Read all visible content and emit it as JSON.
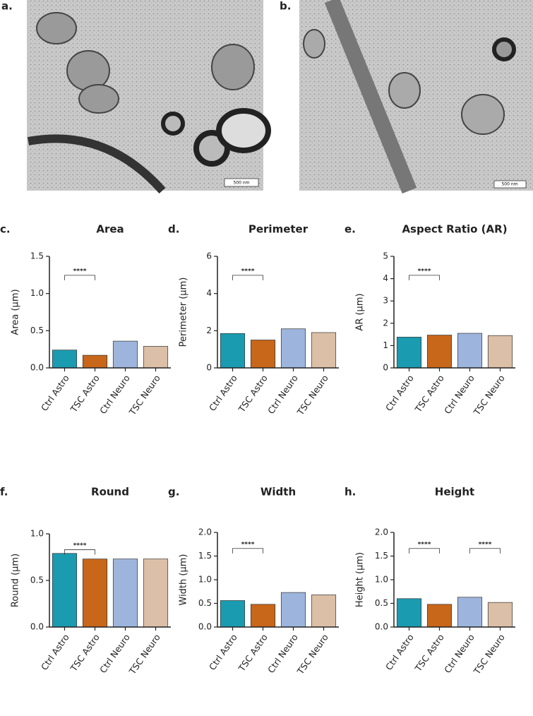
{
  "panels": {
    "a": {
      "label": "a.",
      "scale_bar": "500 nm"
    },
    "b": {
      "label": "b.",
      "scale_bar": "500 nm"
    }
  },
  "chart_data": [
    {
      "type": "bar",
      "panel_label": "c.",
      "title": "Area",
      "y_label": "Area (µm)",
      "categories": [
        "Ctrl Astro",
        "TSC Astro",
        "Ctrl Neuro",
        "TSC Neuro"
      ],
      "values": [
        0.24,
        0.17,
        0.36,
        0.29
      ],
      "colors": [
        "#1a9bb0",
        "#c8661a",
        "#9db5dd",
        "#dbbfa6"
      ],
      "ylim": [
        0,
        1.5
      ],
      "yticks": [
        {
          "value": 0,
          "label": "0.0"
        },
        0.5,
        {
          "value": 1,
          "label": "1.0"
        },
        1.5
      ],
      "annotations": [
        {
          "text": "****",
          "categories": [
            "Ctrl Astro",
            "TSC Astro"
          ]
        }
      ]
    },
    {
      "type": "bar",
      "panel_label": "d.",
      "title": "Perimeter",
      "y_label": "Perimeter (µm)",
      "categories": [
        "Ctrl Astro",
        "TSC Astro",
        "Ctrl Neuro",
        "TSC Neuro"
      ],
      "values": [
        1.85,
        1.5,
        2.1,
        1.9
      ],
      "colors": [
        "#1a9bb0",
        "#c8661a",
        "#9db5dd",
        "#dbbfa6"
      ],
      "ylim": [
        0,
        6
      ],
      "yticks": [
        0,
        2,
        4,
        6
      ],
      "annotations": [
        {
          "text": "****",
          "categories": [
            "Ctrl Astro",
            "TSC Astro"
          ]
        }
      ]
    },
    {
      "type": "bar",
      "panel_label": "e.",
      "title": "Aspect Ratio (AR)",
      "y_label": "AR (µm)",
      "categories": [
        "Ctrl Astro",
        "TSC Astro",
        "Ctrl Neuro",
        "TSC Neuro"
      ],
      "values": [
        1.38,
        1.47,
        1.55,
        1.45
      ],
      "colors": [
        "#1a9bb0",
        "#c8661a",
        "#9db5dd",
        "#dbbfa6"
      ],
      "ylim": [
        0,
        5
      ],
      "yticks": [
        0,
        1,
        2,
        3,
        4,
        5
      ],
      "annotations": [
        {
          "text": "****",
          "categories": [
            "Ctrl Astro",
            "TSC Astro"
          ]
        }
      ]
    },
    {
      "type": "bar",
      "panel_label": "f.",
      "title": "Round",
      "y_label": "Round (µm)",
      "categories": [
        "Ctrl Astro",
        "TSC Astro",
        "Ctrl Neuro",
        "TSC Neuro"
      ],
      "values": [
        0.79,
        0.73,
        0.73,
        0.73
      ],
      "colors": [
        "#1a9bb0",
        "#c8661a",
        "#9db5dd",
        "#dbbfa6"
      ],
      "ylim": [
        0,
        1
      ],
      "yticks": [
        {
          "value": 0,
          "label": "0.0"
        },
        0.5,
        {
          "value": 1,
          "label": "1.0"
        }
      ],
      "annotations": [
        {
          "text": "****",
          "categories": [
            "Ctrl Astro",
            "TSC Astro"
          ]
        }
      ]
    },
    {
      "type": "bar",
      "panel_label": "g.",
      "title": "Width",
      "y_label": "Width (µm)",
      "categories": [
        "Ctrl Astro",
        "TSC Astro",
        "Ctrl Neuro",
        "TSC Neuro"
      ],
      "values": [
        0.56,
        0.48,
        0.73,
        0.68
      ],
      "colors": [
        "#1a9bb0",
        "#c8661a",
        "#9db5dd",
        "#dbbfa6"
      ],
      "ylim": [
        0,
        2
      ],
      "yticks": [
        {
          "value": 0,
          "label": "0.0"
        },
        0.5,
        {
          "value": 1,
          "label": "1.0"
        },
        1.5,
        {
          "value": 2,
          "label": "2.0"
        }
      ],
      "annotations": [
        {
          "text": "****",
          "categories": [
            "Ctrl Astro",
            "TSC Astro"
          ]
        }
      ]
    },
    {
      "type": "bar",
      "panel_label": "h.",
      "title": "Height",
      "y_label": "Height (µm)",
      "categories": [
        "Ctrl Astro",
        "TSC Astro",
        "Ctrl Neuro",
        "TSC Neuro"
      ],
      "values": [
        0.6,
        0.48,
        0.63,
        0.52
      ],
      "colors": [
        "#1a9bb0",
        "#c8661a",
        "#9db5dd",
        "#dbbfa6"
      ],
      "ylim": [
        0,
        2
      ],
      "yticks": [
        {
          "value": 0,
          "label": "0.0"
        },
        0.5,
        {
          "value": 1,
          "label": "1.0"
        },
        1.5,
        {
          "value": 2,
          "label": "2.0"
        }
      ],
      "annotations": [
        {
          "text": "****",
          "categories": [
            "Ctrl Astro",
            "TSC Astro"
          ]
        },
        {
          "text": "****",
          "categories": [
            "Ctrl Neuro",
            "TSC Neuro"
          ]
        }
      ]
    }
  ]
}
